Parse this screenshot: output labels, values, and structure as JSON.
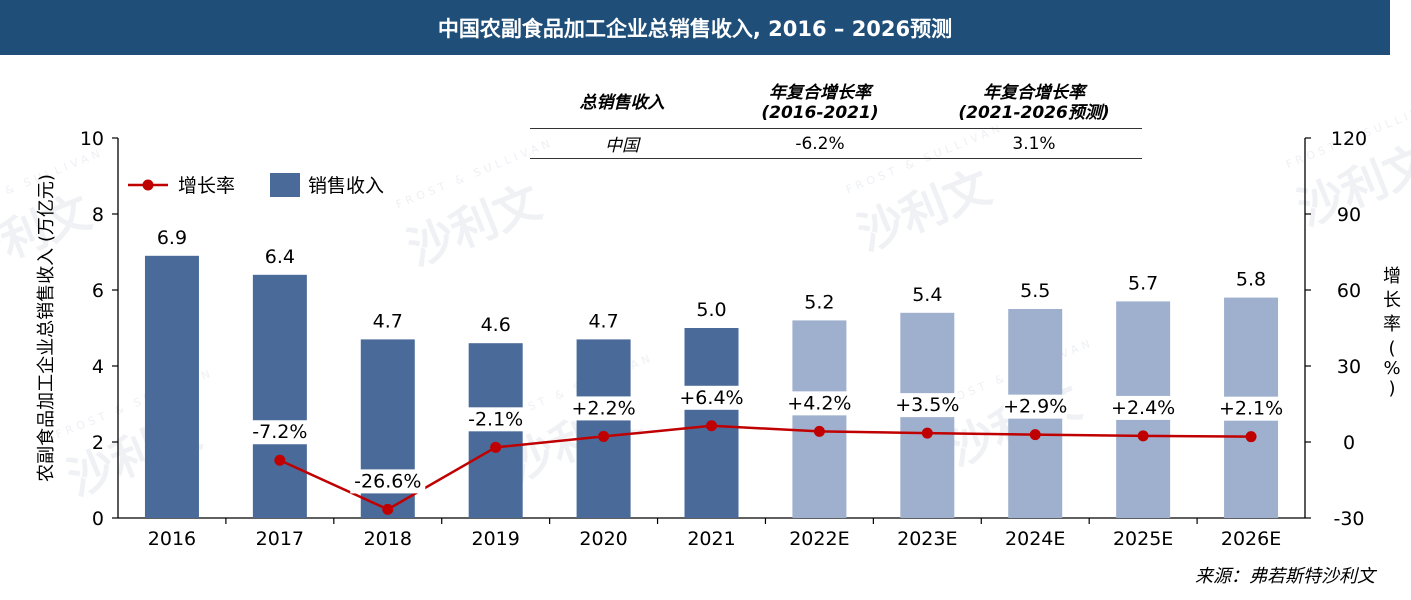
{
  "banner": {
    "title": "中国农副食品加工企业总销售收入, 2016 – 2026预测"
  },
  "cagr_table": {
    "headers": [
      "总销售收入",
      "年复合增长率 (2016-2021)",
      "年复合增长率 (2021-2026预测)"
    ],
    "header_lines": [
      [
        "总销售收入"
      ],
      [
        "年复合增长率",
        "(2016-2021)"
      ],
      [
        "年复合增长率",
        "(2021-2026预测)"
      ]
    ],
    "row": {
      "region": "中国",
      "cagr_2016_2021": "-6.2%",
      "cagr_2021_2026": "3.1%"
    }
  },
  "watermark": {
    "text": "沙利文",
    "subtext": "FROST & SULLIVAN"
  },
  "source": "来源：弗若斯特沙利文",
  "chart_data": {
    "type": "bar",
    "categories": [
      "2016",
      "2017",
      "2018",
      "2019",
      "2020",
      "2021",
      "2022E",
      "2023E",
      "2024E",
      "2025E",
      "2026E"
    ],
    "series": [
      {
        "name": "销售收入",
        "type": "bar",
        "axis": "left",
        "values": [
          6.9,
          6.4,
          4.7,
          4.6,
          4.7,
          5.0,
          5.2,
          5.4,
          5.5,
          5.7,
          5.8
        ],
        "labels": [
          "6.9",
          "6.4",
          "4.7",
          "4.6",
          "4.7",
          "5.0",
          "5.2",
          "5.4",
          "5.5",
          "5.7",
          "5.8"
        ]
      },
      {
        "name": "增长率",
        "type": "line",
        "axis": "right",
        "values": [
          null,
          -7.2,
          -26.6,
          -2.1,
          2.2,
          6.4,
          4.2,
          3.5,
          2.9,
          2.4,
          2.1
        ],
        "labels": [
          "",
          "-7.2%",
          "-26.6%",
          "-2.1%",
          "+2.2%",
          "+6.4%",
          "+4.2%",
          "+3.5%",
          "+2.9%",
          "+2.4%",
          "+2.1%"
        ]
      }
    ],
    "ylabel": "农副食品加工企业总销售收入 (万亿元)",
    "y2label": "增长率 (%)",
    "ylim": [
      0,
      10
    ],
    "y_ticks": [
      "0",
      "2",
      "4",
      "6",
      "8",
      "10"
    ],
    "y2lim": [
      -30,
      120
    ],
    "y2_ticks": [
      "-30",
      "0",
      "30",
      "60",
      "90",
      "120"
    ],
    "forecast_from_index": 6,
    "legend_position": "top-left",
    "colors": {
      "actual": "#4a6a99",
      "forecast": "#9fb0cf",
      "line": "#c00000",
      "banner": "#1f4e79"
    }
  }
}
